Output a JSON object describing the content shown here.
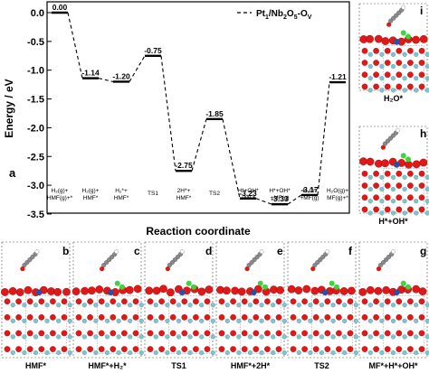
{
  "chart_data": {
    "type": "line",
    "panel_label": "a",
    "ylabel": "Energy / eV",
    "xlabel": "Reaction coordinate",
    "ylim": [
      -3.5,
      0.15
    ],
    "yticks": [
      "0.0",
      "-0.5",
      "-1.0",
      "-1.5",
      "-2.0",
      "-2.5",
      "-3.0",
      "-3.5"
    ],
    "ytick_values": [
      0.0,
      -0.5,
      -1.0,
      -1.5,
      -2.0,
      -2.5,
      -3.0,
      -3.5
    ],
    "legend": {
      "label_prefix": "Pt",
      "label_sub1": "1",
      "label_mid": "/Nb",
      "label_sub2": "2",
      "label_o": "O",
      "label_sub3": "5",
      "label_dash": "-O",
      "label_sub4": "V",
      "placement": "top-right"
    },
    "states": [
      {
        "line1": "H₂(g)+",
        "line2": "HMF(g)+*",
        "energy": 0.0,
        "value_label": "0.00"
      },
      {
        "line1": "H₂(g)+",
        "line2": "HMF*",
        "energy": -1.14,
        "value_label": "-1.14"
      },
      {
        "line1": "H₂*+",
        "line2": "HMF*",
        "energy": -1.2,
        "value_label": "-1.20"
      },
      {
        "line1": "TS1",
        "line2": "",
        "energy": -0.75,
        "value_label": "-0.75"
      },
      {
        "line1": "2H*+",
        "line2": "HMF*",
        "energy": -2.75,
        "value_label": "-2.75"
      },
      {
        "line1": "TS2",
        "line2": "",
        "energy": -1.85,
        "value_label": "-1.85"
      },
      {
        "line1": "H*+OH*",
        "line2": "+MF*",
        "energy": -3.23,
        "value_label": "-3.23"
      },
      {
        "line1": "H*+OH*",
        "line2": "+MF(g)",
        "energy": -3.33,
        "value_label": "-3.33"
      },
      {
        "line1": "H₂O*",
        "line2": "+MF(g)",
        "energy": -3.17,
        "value_label": "-3.17"
      },
      {
        "line1": "H₂O(g)+",
        "line2": "MF(g)+*",
        "energy": -1.21,
        "value_label": "-1.21"
      }
    ]
  },
  "structure_panels": {
    "bottom": [
      {
        "letter": "b",
        "caption": "HMF*"
      },
      {
        "letter": "c",
        "caption": "HMF*+H₂*"
      },
      {
        "letter": "d",
        "caption": "TS1"
      },
      {
        "letter": "e",
        "caption": "HMF*+2H*"
      },
      {
        "letter": "f",
        "caption": "TS2"
      },
      {
        "letter": "g",
        "caption": "MF*+H*+OH*"
      }
    ],
    "side": [
      {
        "letter": "i",
        "caption": "H₂O*"
      },
      {
        "letter": "h",
        "caption": "H*+OH*"
      }
    ]
  },
  "colors": {
    "oxygen": "#e01818",
    "niobium": "#7fc4cf",
    "platinum": "#2c4fa0",
    "hydrogen": "#ffffff",
    "carbon": "#8a8a8a",
    "green_atom": "#3ed43e"
  }
}
